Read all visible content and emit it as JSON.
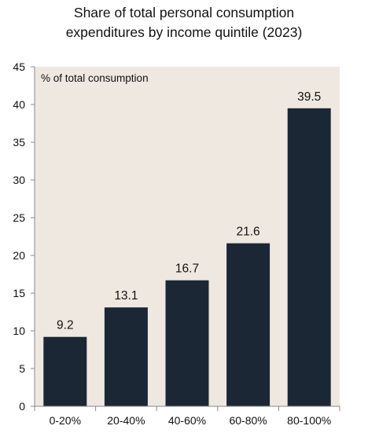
{
  "chart_data": {
    "type": "bar",
    "title_line1": "Share of total personal consumption",
    "title_line2": "expenditures by income quintile (2023)",
    "unit_label": "% of total consumption",
    "categories": [
      "0-20%",
      "20-40%",
      "40-60%",
      "60-80%",
      "80-100%"
    ],
    "values": [
      9.2,
      13.1,
      16.7,
      21.6,
      39.5
    ],
    "data_labels": [
      "9.2",
      "13.1",
      "16.7",
      "21.6",
      "39.5"
    ],
    "ylim": [
      0,
      45
    ],
    "yticks": [
      0,
      5,
      10,
      15,
      20,
      25,
      30,
      35,
      40,
      45
    ],
    "grid": false,
    "colors": {
      "bar": "#1b2735",
      "plot_background": "#efe8e1",
      "axis": "#8a8a8a",
      "text": "#111111"
    }
  }
}
